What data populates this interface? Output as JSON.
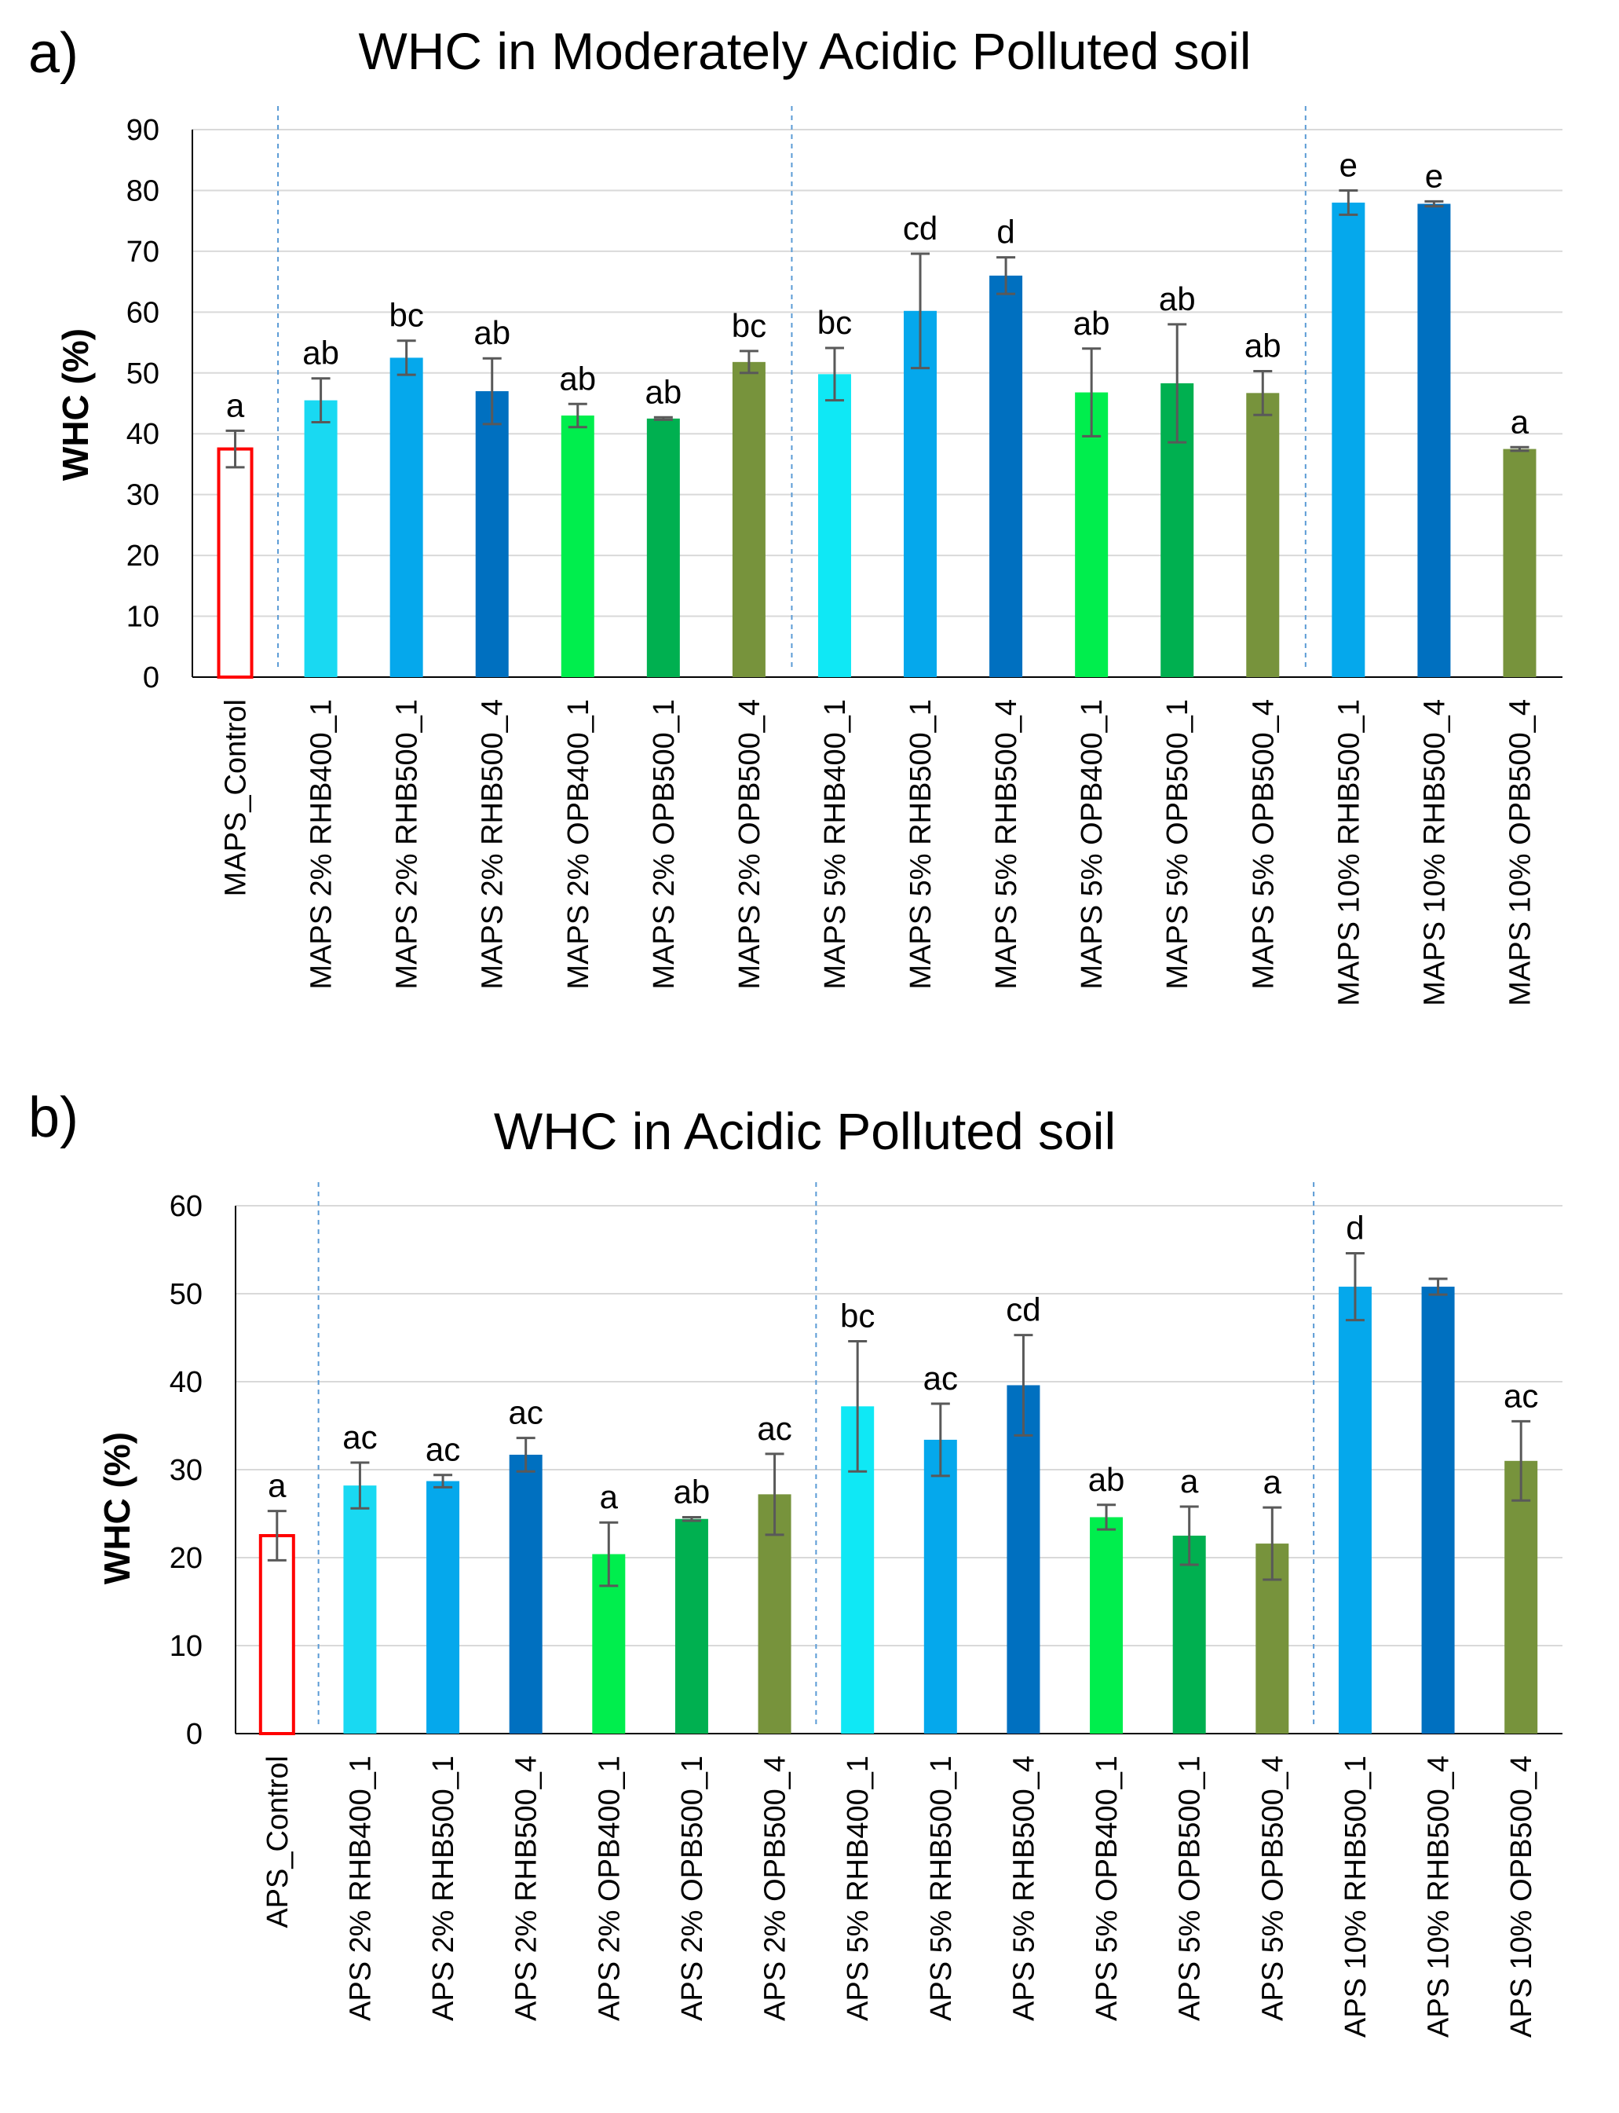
{
  "chart_data": [
    {
      "type": "bar",
      "panel_label": "a)",
      "title": "WHC in Moderately Acidic Polluted soil",
      "xlabel": "",
      "ylabel": "WHC (%)",
      "ylim": [
        0,
        90
      ],
      "yticks": [
        "0",
        "10",
        "20",
        "30",
        "40",
        "50",
        "60",
        "70",
        "80",
        "90"
      ],
      "grid": true,
      "categories": [
        "MAPS_Control",
        "MAPS 2% RHB400_1",
        "MAPS 2% RHB500_1",
        "MAPS 2% RHB500_4",
        "MAPS 2% OPB400_1",
        "MAPS 2% OPB500_1",
        "MAPS 2% OPB500_4",
        "MAPS 5% RHB400_1",
        "MAPS 5% RHB500_1",
        "MAPS 5% RHB500_4",
        "MAPS 5% OPB400_1",
        "MAPS 5% OPB500_1",
        "MAPS 5% OPB500_4",
        "MAPS 10% RHB500_1",
        "MAPS 10% RHB500_4",
        "MAPS 10% OPB500_4"
      ],
      "values": [
        37.5,
        45.5,
        52.5,
        47,
        43,
        42.5,
        51.8,
        49.8,
        60.2,
        66,
        46.8,
        48.3,
        46.7,
        78,
        77.8,
        37.5
      ],
      "errors": [
        3,
        3.6,
        2.8,
        5.4,
        1.9,
        0.2,
        1.8,
        4.3,
        9.4,
        3,
        7.2,
        9.7,
        3.6,
        2,
        0.4,
        0.3
      ],
      "sig_letters": [
        "a",
        "ab",
        "bc",
        "ab",
        "ab",
        "ab",
        "bc",
        "bc",
        "cd",
        "d",
        "ab",
        "ab",
        "ab",
        "e",
        "e",
        "a"
      ],
      "colors": [
        "#ffffff",
        "#19d9f2",
        "#05a8ec",
        "#0070c0",
        "#00ee4d",
        "#00b050",
        "#77933c",
        "#0fe8f5",
        "#05a8ec",
        "#0070c0",
        "#00ee4d",
        "#00b050",
        "#77933c",
        "#05a8ec",
        "#0070c0",
        "#77933c"
      ],
      "control_outline_color": "#ff0000",
      "group_separators_after": [
        0,
        6,
        12
      ]
    },
    {
      "type": "bar",
      "panel_label": "b)",
      "title": "WHC in Acidic Polluted soil",
      "xlabel": "",
      "ylabel": "WHC (%)",
      "ylim": [
        0,
        60
      ],
      "yticks": [
        "0",
        "10",
        "20",
        "30",
        "40",
        "50",
        "60"
      ],
      "grid": true,
      "categories": [
        "APS_Control",
        "APS 2% RHB400_1",
        "APS 2% RHB500_1",
        "APS 2% RHB500_4",
        "APS 2% OPB400_1",
        "APS 2% OPB500_1",
        "APS 2% OPB500_4",
        "APS 5% RHB400_1",
        "APS 5% RHB500_1",
        "APS 5% RHB500_4",
        "APS 5% OPB400_1",
        "APS 5% OPB500_1",
        "APS 5% OPB500_4",
        "APS 10% RHB500_1",
        "APS 10% RHB500_4",
        "APS 10% OPB500_4"
      ],
      "values": [
        22.5,
        28.2,
        28.7,
        31.7,
        20.4,
        24.4,
        27.2,
        37.2,
        33.4,
        39.6,
        24.6,
        22.5,
        21.6,
        50.8,
        50.8,
        31
      ],
      "errors": [
        2.8,
        2.6,
        0.7,
        1.9,
        3.6,
        0.2,
        4.6,
        7.4,
        4.1,
        5.7,
        1.4,
        3.3,
        4.1,
        3.8,
        0.9,
        4.5
      ],
      "sig_letters": [
        "a",
        "ac",
        "ac",
        "ac",
        "a",
        "ab",
        "ac",
        "bc",
        "ac",
        "cd",
        "ab",
        "a",
        "a",
        "d",
        "",
        "ac"
      ],
      "colors": [
        "#ffffff",
        "#19d9f2",
        "#05a8ec",
        "#0070c0",
        "#00ee4d",
        "#00b050",
        "#77933c",
        "#0fe8f5",
        "#05a8ec",
        "#0070c0",
        "#00ee4d",
        "#00b050",
        "#77933c",
        "#05a8ec",
        "#0070c0",
        "#77933c"
      ],
      "control_outline_color": "#ff0000",
      "group_separators_after": [
        0,
        6,
        12
      ]
    }
  ]
}
